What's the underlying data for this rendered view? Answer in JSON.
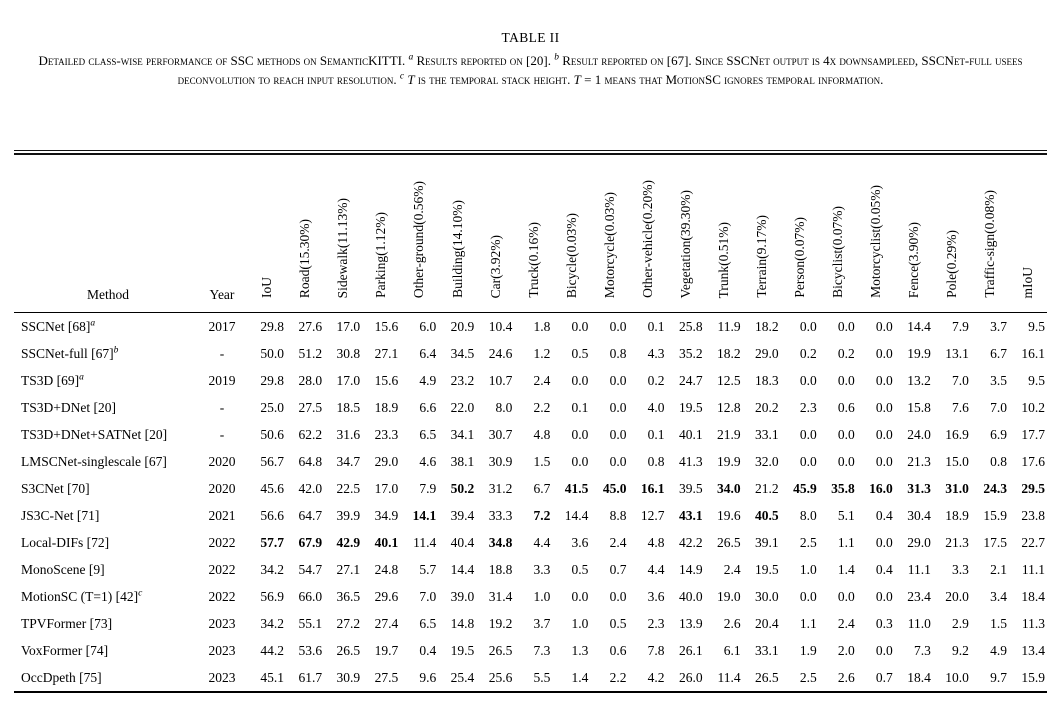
{
  "caption": {
    "label": "TABLE II",
    "segments": [
      {
        "t": "Detailed class-wise performance of SSC methods on SemanticKITTI. ",
        "s": "sc"
      },
      {
        "t": "a",
        "s": "sup"
      },
      {
        "t": " Results reported on [20]. ",
        "s": "sc"
      },
      {
        "t": "b",
        "s": "sup"
      },
      {
        "t": " Result reported on [67]. Since SSCNet output is 4x downsampleed, SSCNet-full usees deconvolution to reach input resolution. ",
        "s": "sc"
      },
      {
        "t": "c",
        "s": "sup"
      },
      {
        "t": " ",
        "s": "sc"
      },
      {
        "t": "T",
        "s": "it"
      },
      {
        "t": " is the temporal stack height. ",
        "s": "sc"
      },
      {
        "t": "T",
        "s": "it"
      },
      {
        "t": " = 1 means that MotionSC ignores temporal information.",
        "s": "sc"
      }
    ]
  },
  "table": {
    "method_header": "Method",
    "year_header": "Year",
    "columns": [
      "IoU",
      "Road(15.30%)",
      "Sidewalk(11.13%)",
      "Parking(1.12%)",
      "Other-ground(0.56%)",
      "Building(14.10%)",
      "Car(3.92%)",
      "Truck(0.16%)",
      "Bicycle(0.03%)",
      "Motorcycle(0.03%)",
      "Other-vehicle(0.20%)",
      "Vegetation(39.30%)",
      "Trunk(0.51%)",
      "Terrain(9.17%)",
      "Person(0.07%)",
      "Bicyclist(0.07%)",
      "Motorcyclist(0.05%)",
      "Fence(3.90%)",
      "Pole(0.29%)",
      "Traffic-sign(0.08%)",
      "mIoU"
    ],
    "rows": [
      {
        "method": "SSCNet [68]",
        "sup": "a",
        "year": "2017",
        "values": [
          "29.8",
          "27.6",
          "17.0",
          "15.6",
          "6.0",
          "20.9",
          "10.4",
          "1.8",
          "0.0",
          "0.0",
          "0.1",
          "25.8",
          "11.9",
          "18.2",
          "0.0",
          "0.0",
          "0.0",
          "14.4",
          "7.9",
          "3.7",
          "9.5"
        ],
        "bold": []
      },
      {
        "method": "SSCNet-full [67]",
        "sup": "b",
        "year": "-",
        "values": [
          "50.0",
          "51.2",
          "30.8",
          "27.1",
          "6.4",
          "34.5",
          "24.6",
          "1.2",
          "0.5",
          "0.8",
          "4.3",
          "35.2",
          "18.2",
          "29.0",
          "0.2",
          "0.2",
          "0.0",
          "19.9",
          "13.1",
          "6.7",
          "16.1"
        ],
        "bold": []
      },
      {
        "method": "TS3D [69]",
        "sup": "a",
        "year": "2019",
        "values": [
          "29.8",
          "28.0",
          "17.0",
          "15.6",
          "4.9",
          "23.2",
          "10.7",
          "2.4",
          "0.0",
          "0.0",
          "0.2",
          "24.7",
          "12.5",
          "18.3",
          "0.0",
          "0.0",
          "0.0",
          "13.2",
          "7.0",
          "3.5",
          "9.5"
        ],
        "bold": []
      },
      {
        "method": "TS3D+DNet [20]",
        "sup": "",
        "year": "-",
        "values": [
          "25.0",
          "27.5",
          "18.5",
          "18.9",
          "6.6",
          "22.0",
          "8.0",
          "2.2",
          "0.1",
          "0.0",
          "4.0",
          "19.5",
          "12.8",
          "20.2",
          "2.3",
          "0.6",
          "0.0",
          "15.8",
          "7.6",
          "7.0",
          "10.2"
        ],
        "bold": []
      },
      {
        "method": "TS3D+DNet+SATNet [20]",
        "sup": "",
        "year": "-",
        "values": [
          "50.6",
          "62.2",
          "31.6",
          "23.3",
          "6.5",
          "34.1",
          "30.7",
          "4.8",
          "0.0",
          "0.0",
          "0.1",
          "40.1",
          "21.9",
          "33.1",
          "0.0",
          "0.0",
          "0.0",
          "24.0",
          "16.9",
          "6.9",
          "17.7"
        ],
        "bold": []
      },
      {
        "method": "LMSCNet-singlescale [67]",
        "sup": "",
        "year": "2020",
        "values": [
          "56.7",
          "64.8",
          "34.7",
          "29.0",
          "4.6",
          "38.1",
          "30.9",
          "1.5",
          "0.0",
          "0.0",
          "0.8",
          "41.3",
          "19.9",
          "32.0",
          "0.0",
          "0.0",
          "0.0",
          "21.3",
          "15.0",
          "0.8",
          "17.6"
        ],
        "bold": []
      },
      {
        "method": "S3CNet [70]",
        "sup": "",
        "year": "2020",
        "values": [
          "45.6",
          "42.0",
          "22.5",
          "17.0",
          "7.9",
          "50.2",
          "31.2",
          "6.7",
          "41.5",
          "45.0",
          "16.1",
          "39.5",
          "34.0",
          "21.2",
          "45.9",
          "35.8",
          "16.0",
          "31.3",
          "31.0",
          "24.3",
          "29.5"
        ],
        "bold": [
          5,
          8,
          9,
          10,
          12,
          14,
          15,
          16,
          17,
          18,
          19,
          20
        ]
      },
      {
        "method": "JS3C-Net [71]",
        "sup": "",
        "year": "2021",
        "values": [
          "56.6",
          "64.7",
          "39.9",
          "34.9",
          "14.1",
          "39.4",
          "33.3",
          "7.2",
          "14.4",
          "8.8",
          "12.7",
          "43.1",
          "19.6",
          "40.5",
          "8.0",
          "5.1",
          "0.4",
          "30.4",
          "18.9",
          "15.9",
          "23.8"
        ],
        "bold": [
          4,
          7,
          11,
          13
        ]
      },
      {
        "method": "Local-DIFs [72]",
        "sup": "",
        "year": "2022",
        "values": [
          "57.7",
          "67.9",
          "42.9",
          "40.1",
          "11.4",
          "40.4",
          "34.8",
          "4.4",
          "3.6",
          "2.4",
          "4.8",
          "42.2",
          "26.5",
          "39.1",
          "2.5",
          "1.1",
          "0.0",
          "29.0",
          "21.3",
          "17.5",
          "22.7"
        ],
        "bold": [
          0,
          1,
          2,
          3,
          6
        ]
      },
      {
        "method": "MonoScene [9]",
        "sup": "",
        "year": "2022",
        "values": [
          "34.2",
          "54.7",
          "27.1",
          "24.8",
          "5.7",
          "14.4",
          "18.8",
          "3.3",
          "0.5",
          "0.7",
          "4.4",
          "14.9",
          "2.4",
          "19.5",
          "1.0",
          "1.4",
          "0.4",
          "11.1",
          "3.3",
          "2.1",
          "11.1"
        ],
        "bold": []
      },
      {
        "method": "MotionSC (T=1) [42]",
        "sup": "c",
        "year": "2022",
        "values": [
          "56.9",
          "66.0",
          "36.5",
          "29.6",
          "7.0",
          "39.0",
          "31.4",
          "1.0",
          "0.0",
          "0.0",
          "3.6",
          "40.0",
          "19.0",
          "30.0",
          "0.0",
          "0.0",
          "0.0",
          "23.4",
          "20.0",
          "3.4",
          "18.4"
        ],
        "bold": []
      },
      {
        "method": "TPVFormer [73]",
        "sup": "",
        "year": "2023",
        "values": [
          "34.2",
          "55.1",
          "27.2",
          "27.4",
          "6.5",
          "14.8",
          "19.2",
          "3.7",
          "1.0",
          "0.5",
          "2.3",
          "13.9",
          "2.6",
          "20.4",
          "1.1",
          "2.4",
          "0.3",
          "11.0",
          "2.9",
          "1.5",
          "11.3"
        ],
        "bold": []
      },
      {
        "method": "VoxFormer [74]",
        "sup": "",
        "year": "2023",
        "values": [
          "44.2",
          "53.6",
          "26.5",
          "19.7",
          "0.4",
          "19.5",
          "26.5",
          "7.3",
          "1.3",
          "0.6",
          "7.8",
          "26.1",
          "6.1",
          "33.1",
          "1.9",
          "2.0",
          "0.0",
          "7.3",
          "9.2",
          "4.9",
          "13.4"
        ],
        "bold": []
      },
      {
        "method": "OccDpeth [75]",
        "sup": "",
        "year": "2023",
        "values": [
          "45.1",
          "61.7",
          "30.9",
          "27.5",
          "9.6",
          "25.4",
          "25.6",
          "5.5",
          "1.4",
          "2.2",
          "4.2",
          "26.0",
          "11.4",
          "26.5",
          "2.5",
          "2.6",
          "0.7",
          "18.4",
          "10.0",
          "9.7",
          "15.9"
        ],
        "bold": []
      }
    ]
  }
}
